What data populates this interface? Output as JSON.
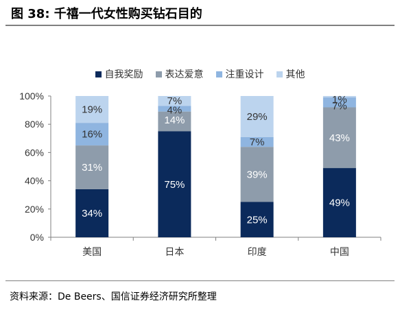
{
  "figure": {
    "title": "图 38:  千禧一代女性购买钻石目的",
    "source": "资料来源：De Beers、国信证券经济研究所整理"
  },
  "chart_data": {
    "type": "bar",
    "stacked": true,
    "categories": [
      "美国",
      "日本",
      "印度",
      "中国"
    ],
    "series": [
      {
        "name": "自我奖励",
        "color": "#0b2a5b",
        "values": [
          34,
          75,
          25,
          49
        ],
        "labels": [
          "34%",
          "75%",
          "25%",
          "49%"
        ]
      },
      {
        "name": "表达爱意",
        "color": "#8e9cab",
        "values": [
          31,
          14,
          39,
          43
        ],
        "labels": [
          "31%",
          "14%",
          "39%",
          "43%"
        ]
      },
      {
        "name": "注重设计",
        "color": "#8fb5e0",
        "values": [
          16,
          4,
          7,
          7
        ],
        "labels": [
          "16%",
          "4%",
          "7%",
          "7%"
        ]
      },
      {
        "name": "其他",
        "color": "#bcd4ee",
        "values": [
          19,
          7,
          29,
          1
        ],
        "labels": [
          "19%",
          "7%",
          "29%",
          "1%"
        ]
      }
    ],
    "yticks": [
      "0%",
      "20%",
      "40%",
      "60%",
      "80%",
      "100%"
    ],
    "ylim": [
      0,
      100
    ],
    "grid": false,
    "legend_position": "top"
  }
}
